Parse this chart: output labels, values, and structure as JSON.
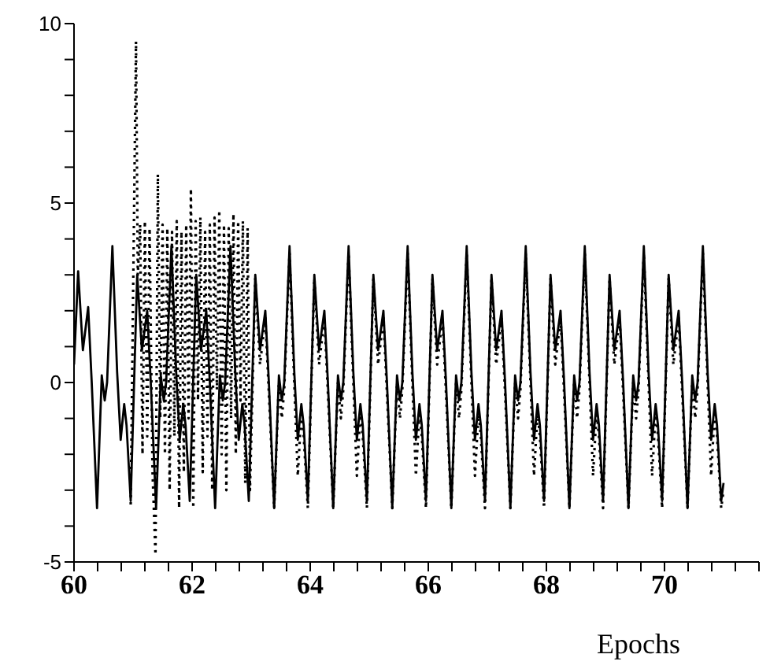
{
  "chart_data": {
    "type": "line",
    "xlabel": "Epochs",
    "xlim": [
      60,
      71.6
    ],
    "ylim": [
      -5,
      10
    ],
    "xticks": [
      60,
      {
        "value": 60.4,
        "label": null
      },
      {
        "value": 60.8,
        "label": null
      },
      {
        "value": 61.2,
        "label": null
      },
      {
        "value": 61.6,
        "label": null
      },
      62,
      {
        "value": 62.4,
        "label": null
      },
      {
        "value": 62.8,
        "label": null
      },
      {
        "value": 63.2,
        "label": null
      },
      {
        "value": 63.6,
        "label": null
      },
      64,
      {
        "value": 64.4,
        "label": null
      },
      {
        "value": 64.8,
        "label": null
      },
      {
        "value": 65.2,
        "label": null
      },
      {
        "value": 65.6,
        "label": null
      },
      66,
      {
        "value": 66.4,
        "label": null
      },
      {
        "value": 66.8,
        "label": null
      },
      {
        "value": 67.2,
        "label": null
      },
      {
        "value": 67.6,
        "label": null
      },
      68,
      {
        "value": 68.4,
        "label": null
      },
      {
        "value": 68.8,
        "label": null
      },
      {
        "value": 69.2,
        "label": null
      },
      {
        "value": 69.6,
        "label": null
      },
      70,
      {
        "value": 70.4,
        "label": null
      },
      {
        "value": 70.8,
        "label": null
      },
      {
        "value": 71.2,
        "label": null
      },
      {
        "value": 71.6,
        "label": null
      }
    ],
    "yticks": [
      -5,
      {
        "value": -4,
        "label": null
      },
      {
        "value": -3,
        "label": null
      },
      {
        "value": -2,
        "label": null
      },
      {
        "value": -1,
        "label": null
      },
      0,
      {
        "value": 1,
        "label": null
      },
      {
        "value": 2,
        "label": null
      },
      {
        "value": 3,
        "label": null
      },
      {
        "value": 4,
        "label": null
      },
      5,
      {
        "value": 6,
        "label": null
      },
      {
        "value": 7,
        "label": null
      },
      {
        "value": 8,
        "label": null
      },
      {
        "value": 9,
        "label": null
      },
      10
    ],
    "grid": false,
    "legend": false,
    "marker": "none",
    "series": [
      {
        "color": "#000000",
        "line_style": "solid",
        "x": [
          60,
          60.07,
          60.15,
          60.24,
          60.3,
          60.39,
          60.47,
          60.52,
          60.56,
          60.65,
          60.73,
          60.79,
          60.85,
          60.89,
          60.96,
          61.07,
          61.15,
          61.24,
          61.3,
          61.39,
          61.47,
          61.52,
          61.56,
          61.65,
          61.73,
          61.79,
          61.85,
          61.89,
          61.96,
          62.07,
          62.15,
          62.24,
          62.3,
          62.39,
          62.47,
          62.52,
          62.56,
          62.65,
          62.73,
          62.79,
          62.85,
          62.89,
          62.96,
          63.07,
          63.15,
          63.24,
          63.3,
          63.39,
          63.47,
          63.52,
          63.56,
          63.65,
          63.73,
          63.79,
          63.85,
          63.89,
          63.96,
          64.07,
          64.15,
          64.24,
          64.3,
          64.39,
          64.47,
          64.52,
          64.56,
          64.65,
          64.73,
          64.79,
          64.85,
          64.89,
          64.96,
          65.07,
          65.15,
          65.24,
          65.3,
          65.39,
          65.47,
          65.52,
          65.56,
          65.65,
          65.73,
          65.79,
          65.85,
          65.89,
          65.96,
          66.07,
          66.15,
          66.24,
          66.3,
          66.39,
          66.47,
          66.52,
          66.56,
          66.65,
          66.73,
          66.79,
          66.85,
          66.89,
          66.96,
          67.07,
          67.15,
          67.24,
          67.3,
          67.39,
          67.47,
          67.52,
          67.56,
          67.65,
          67.73,
          67.79,
          67.85,
          67.89,
          67.96,
          68.07,
          68.15,
          68.24,
          68.3,
          68.39,
          68.47,
          68.52,
          68.56,
          68.65,
          68.73,
          68.79,
          68.85,
          68.89,
          68.96,
          69.07,
          69.15,
          69.24,
          69.3,
          69.39,
          69.47,
          69.52,
          69.56,
          69.65,
          69.73,
          69.79,
          69.85,
          69.89,
          69.96,
          70.07,
          70.15,
          70.24,
          70.3,
          70.39,
          70.47,
          70.52,
          70.56,
          70.65,
          70.73,
          70.79,
          70.85,
          70.89,
          70.96,
          71
        ],
        "values": [
          0.5,
          3.1,
          0.9,
          2.1,
          0,
          -3.5,
          0.2,
          -0.5,
          0,
          3.8,
          0.3,
          -1.6,
          -0.6,
          -1.2,
          -3.3,
          3,
          0.9,
          2,
          0,
          -3.5,
          0.2,
          -0.5,
          0,
          3.8,
          0.3,
          -1.6,
          -0.6,
          -1.2,
          -3.3,
          3,
          0.9,
          2,
          0,
          -3.5,
          0.2,
          -0.5,
          0,
          3.8,
          0.3,
          -1.6,
          -0.6,
          -1.2,
          -3.3,
          3,
          0.9,
          2,
          0,
          -3.5,
          0.2,
          -0.5,
          0,
          3.8,
          0.3,
          -1.6,
          -0.6,
          -1.2,
          -3.3,
          3,
          0.9,
          2,
          0,
          -3.5,
          0.2,
          -0.5,
          0,
          3.8,
          0.3,
          -1.6,
          -0.6,
          -1.2,
          -3.3,
          3,
          0.9,
          2,
          0,
          -3.5,
          0.2,
          -0.5,
          0,
          3.8,
          0.3,
          -1.6,
          -0.6,
          -1.2,
          -3.3,
          3,
          0.9,
          2,
          0,
          -3.5,
          0.2,
          -0.5,
          0,
          3.8,
          0.3,
          -1.6,
          -0.6,
          -1.2,
          -3.3,
          3,
          0.9,
          2,
          0,
          -3.5,
          0.2,
          -0.5,
          0,
          3.8,
          0.3,
          -1.6,
          -0.6,
          -1.2,
          -3.3,
          3,
          0.9,
          2,
          0,
          -3.5,
          0.2,
          -0.5,
          0,
          3.8,
          0.3,
          -1.6,
          -0.6,
          -1.2,
          -3.3,
          3,
          0.9,
          2,
          0,
          -3.5,
          0.2,
          -0.5,
          0,
          3.8,
          0.3,
          -1.6,
          -0.6,
          -1.2,
          -3.3,
          3,
          0.9,
          2,
          0,
          -3.5,
          0.2,
          -0.5,
          0,
          3.8,
          0.3,
          -1.6,
          -0.6,
          -1.2,
          -3.3,
          -2.8
        ]
      },
      {
        "color": "#000000",
        "line_style": "dotted",
        "x": [
          60.96,
          61.05,
          61.08,
          61.12,
          61.16,
          61.2,
          61.24,
          61.28,
          61.33,
          61.38,
          61.42,
          61.46,
          61.5,
          61.54,
          61.58,
          61.62,
          61.66,
          61.7,
          61.74,
          61.78,
          61.82,
          61.86,
          61.9,
          61.94,
          61.98,
          62.02,
          62.06,
          62.1,
          62.14,
          62.18,
          62.22,
          62.26,
          62.3,
          62.34,
          62.38,
          62.42,
          62.46,
          62.5,
          62.54,
          62.58,
          62.62,
          62.66,
          62.7,
          62.74,
          62.78,
          62.82,
          62.86,
          62.9,
          62.94,
          62.98,
          63.07,
          63.15,
          63.24,
          63.3,
          63.39,
          63.47,
          63.52,
          63.56,
          63.65,
          63.73,
          63.79,
          63.85,
          63.89,
          63.96,
          64.07,
          64.15,
          64.24,
          64.3,
          64.39,
          64.47,
          64.52,
          64.56,
          64.65,
          64.73,
          64.79,
          64.85,
          64.89,
          64.96,
          65.07,
          65.15,
          65.24,
          65.3,
          65.39,
          65.47,
          65.52,
          65.56,
          65.65,
          65.73,
          65.79,
          65.85,
          65.89,
          65.96,
          66.07,
          66.15,
          66.24,
          66.3,
          66.39,
          66.47,
          66.52,
          66.56,
          66.65,
          66.73,
          66.79,
          66.85,
          66.89,
          66.96,
          67.07,
          67.15,
          67.24,
          67.3,
          67.39,
          67.47,
          67.52,
          67.56,
          67.65,
          67.73,
          67.79,
          67.85,
          67.89,
          67.96,
          68.07,
          68.15,
          68.24,
          68.3,
          68.39,
          68.47,
          68.52,
          68.56,
          68.65,
          68.73,
          68.79,
          68.85,
          68.89,
          68.96,
          69.07,
          69.15,
          69.24,
          69.3,
          69.39,
          69.47,
          69.52,
          69.56,
          69.65,
          69.73,
          69.79,
          69.85,
          69.89,
          69.96,
          70.07,
          70.15,
          70.24,
          70.3,
          70.39,
          70.47,
          70.52,
          70.56,
          70.65,
          70.73,
          70.79,
          70.85,
          70.89,
          70.96,
          71
        ],
        "values": [
          -3.4,
          9.5,
          3,
          4.4,
          -2,
          4.5,
          -1.5,
          4.3,
          -2.5,
          -4.8,
          5.8,
          -1,
          4.4,
          -2,
          4.3,
          -3,
          4.2,
          -1.5,
          4.5,
          -3.5,
          4.2,
          -2.5,
          4.4,
          -1,
          5.4,
          -3.5,
          4.5,
          -0.5,
          4.6,
          -2.5,
          4.2,
          -1.5,
          4.4,
          -3,
          4.6,
          -0.2,
          4.8,
          -2,
          4.4,
          -3,
          4.3,
          -1,
          4.7,
          -2,
          4.5,
          -0.5,
          4.5,
          -2.8,
          4.3,
          -3,
          2.9,
          0.5,
          1.8,
          -0.3,
          -3.5,
          0,
          -1,
          -0.2,
          3.6,
          0,
          -2.6,
          -0.8,
          -1.5,
          -3.5,
          2.9,
          0.5,
          1.8,
          -0.3,
          -3.5,
          0,
          -1,
          -0.2,
          3.6,
          0,
          -2.6,
          -0.8,
          -1.5,
          -3.5,
          2.9,
          0.5,
          1.8,
          -0.3,
          -3.5,
          0,
          -1,
          -0.2,
          3.6,
          0,
          -2.6,
          -0.8,
          -1.5,
          -3.5,
          2.9,
          0.5,
          1.8,
          -0.3,
          -3.5,
          0,
          -1,
          -0.2,
          3.6,
          0,
          -2.6,
          -0.8,
          -1.5,
          -3.5,
          2.9,
          0.5,
          1.8,
          -0.3,
          -3.5,
          0,
          -1,
          -0.2,
          3.6,
          0,
          -2.6,
          -0.8,
          -1.5,
          -3.5,
          2.9,
          0.5,
          1.8,
          -0.3,
          -3.5,
          0,
          -1,
          -0.2,
          3.6,
          0,
          -2.6,
          -0.8,
          -1.5,
          -3.5,
          2.9,
          0.5,
          1.8,
          -0.3,
          -3.5,
          0,
          -1,
          -0.2,
          3.6,
          0,
          -2.6,
          -0.8,
          -1.5,
          -3.5,
          2.9,
          0.5,
          1.8,
          -0.3,
          -3.5,
          0,
          -1,
          -0.2,
          3.6,
          0,
          -2.6,
          -0.8,
          -1.5,
          -3.5,
          -3
        ]
      }
    ]
  }
}
